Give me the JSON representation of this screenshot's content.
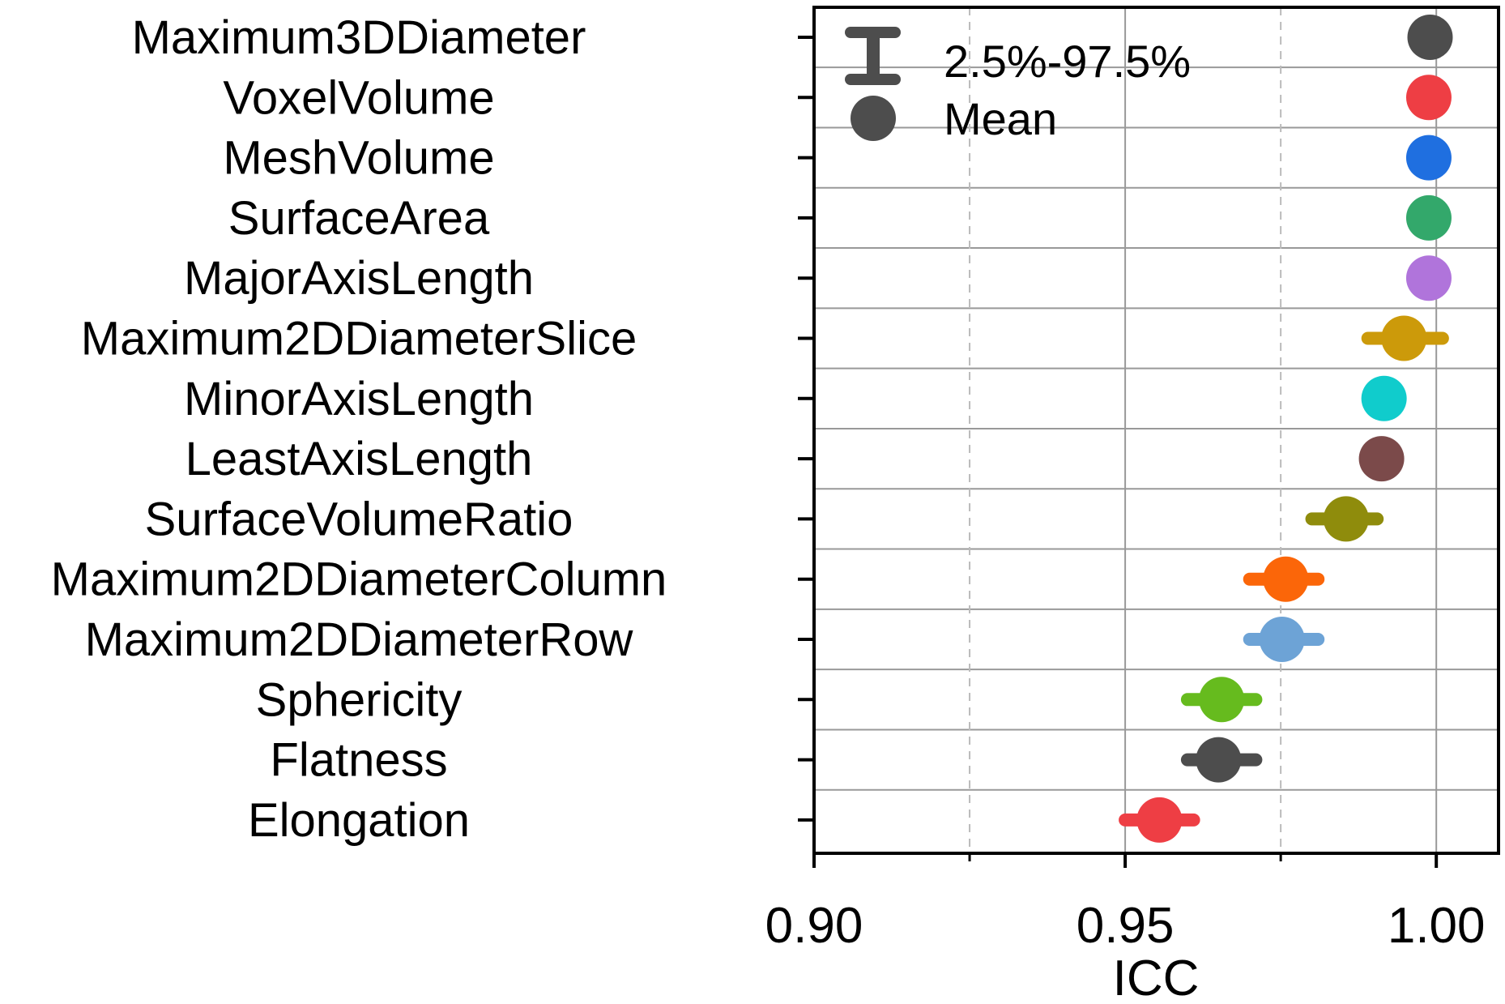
{
  "chart_data": {
    "type": "scatter",
    "title": "",
    "xlabel": "ICC",
    "ylabel": "",
    "xlim": [
      0.9,
      1.01
    ],
    "x_ticks": [
      0.9,
      0.95,
      1.0
    ],
    "x_tick_labels": [
      "0.90",
      "0.95",
      "1.00"
    ],
    "minor_gridlines_x": [
      0.925,
      0.975
    ],
    "grid": true,
    "legend": {
      "placement": "top-left",
      "entries": [
        {
          "symbol": "errorbar",
          "label": "2.5%-97.5%"
        },
        {
          "symbol": "circle",
          "label": "Mean"
        }
      ]
    },
    "categories": [
      "Maximum3DDiameter",
      "VoxelVolume",
      "MeshVolume",
      "SurfaceArea",
      "MajorAxisLength",
      "Maximum2DDiameterSlice",
      "MinorAxisLength",
      "LeastAxisLength",
      "SurfaceVolumeRatio",
      "Maximum2DDiameterColumn",
      "Maximum2DDiameterRow",
      "Sphericity",
      "Flatness",
      "Elongation"
    ],
    "points": [
      {
        "mean": 0.999,
        "lower": 0.9985,
        "upper": 0.9995,
        "color": "#4d4d4d"
      },
      {
        "mean": 0.9988,
        "lower": 0.9983,
        "upper": 0.9993,
        "color": "#ee3e44"
      },
      {
        "mean": 0.9988,
        "lower": 0.9983,
        "upper": 0.9993,
        "color": "#1f6fe0"
      },
      {
        "mean": 0.9988,
        "lower": 0.9983,
        "upper": 0.9993,
        "color": "#33a86b"
      },
      {
        "mean": 0.9988,
        "lower": 0.9983,
        "upper": 0.9993,
        "color": "#b074db"
      },
      {
        "mean": 0.9948,
        "lower": 0.989,
        "upper": 1.001,
        "color": "#cc9a0a"
      },
      {
        "mean": 0.9916,
        "lower": 0.99,
        "upper": 0.9932,
        "color": "#10cccc"
      },
      {
        "mean": 0.9912,
        "lower": 0.9895,
        "upper": 0.9929,
        "color": "#7b4a4a"
      },
      {
        "mean": 0.9855,
        "lower": 0.98,
        "upper": 0.9905,
        "color": "#8f8c0c"
      },
      {
        "mean": 0.9758,
        "lower": 0.97,
        "upper": 0.981,
        "color": "#fb6609"
      },
      {
        "mean": 0.9752,
        "lower": 0.97,
        "upper": 0.981,
        "color": "#6da3d6"
      },
      {
        "mean": 0.9655,
        "lower": 0.96,
        "upper": 0.971,
        "color": "#66bb1e"
      },
      {
        "mean": 0.965,
        "lower": 0.96,
        "upper": 0.971,
        "color": "#4d4d4d"
      },
      {
        "mean": 0.9555,
        "lower": 0.95,
        "upper": 0.961,
        "color": "#ee3e44"
      }
    ]
  }
}
